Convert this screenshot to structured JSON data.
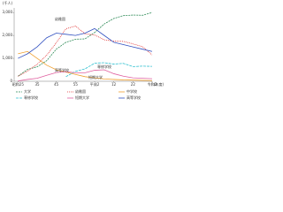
{
  "chart_data": {
    "type": "line",
    "y_unit": "(千人)",
    "x_unit": "(年度)",
    "x": [
      1950,
      1955,
      1960,
      1965,
      1970,
      1975,
      1980,
      1985,
      1990,
      1995,
      2000,
      2005,
      2010,
      2015,
      2020
    ],
    "xlim": [
      1948,
      2020
    ],
    "xticks": [
      {
        "value": 1950,
        "label": "昭和25"
      },
      {
        "value": 1960,
        "label": "35"
      },
      {
        "value": 1970,
        "label": "45"
      },
      {
        "value": 1980,
        "label": "55"
      },
      {
        "value": 1990,
        "label": "平成2"
      },
      {
        "value": 2000,
        "label": "12"
      },
      {
        "value": 2010,
        "label": "22"
      },
      {
        "value": 2020,
        "label": "令和2"
      }
    ],
    "ylim": [
      0,
      3200
    ],
    "yticks": [
      0,
      {
        "value": 1000,
        "label": "1,000"
      },
      {
        "value": 2000,
        "label": "2,000"
      },
      {
        "value": 3000,
        "label": "3,000"
      }
    ],
    "grid": false,
    "series": [
      {
        "name": "大学",
        "color": "#2e8b57",
        "dash": "2,1",
        "values": [
          220,
          520,
          630,
          900,
          1400,
          1700,
          1835,
          1850,
          2130,
          2500,
          2740,
          2865,
          2890,
          2880,
          3000
        ]
      },
      {
        "name": "幼稚園",
        "color": "#e03030",
        "dash": "1,1",
        "values": [
          220,
          450,
          740,
          1140,
          1680,
          2290,
          2410,
          2070,
          2020,
          1810,
          1750,
          1740,
          1630,
          1510,
          1150
        ]
      },
      {
        "name": "中学校",
        "color": "#f0a030",
        "dash": "",
        "values": [
          1200,
          1300,
          1000,
          700,
          500,
          400,
          300,
          200,
          150,
          100,
          80,
          60,
          50,
          40,
          30
        ]
      },
      {
        "name": "専修学校",
        "color": "#30c0d0",
        "dash": "3,1",
        "values": [
          null,
          null,
          null,
          null,
          null,
          200,
          430,
          540,
          790,
          810,
          750,
          780,
          640,
          660,
          650
        ]
      },
      {
        "name": "短期大学",
        "color": "#e060a0",
        "dash": "",
        "values": [
          15,
          80,
          130,
          260,
          380,
          420,
          370,
          370,
          480,
          500,
          330,
          220,
          150,
          130,
          110
        ]
      },
      {
        "name": "高等学校",
        "color": "#3050c0",
        "dash": "",
        "values": [
          1000,
          1200,
          1500,
          1900,
          2100,
          2050,
          2000,
          2100,
          2300,
          2000,
          1700,
          1600,
          1500,
          1400,
          1300
        ]
      }
    ],
    "annotations": [
      "幼稚園",
      "高等学校",
      "専修学校",
      "短期大学"
    ]
  }
}
